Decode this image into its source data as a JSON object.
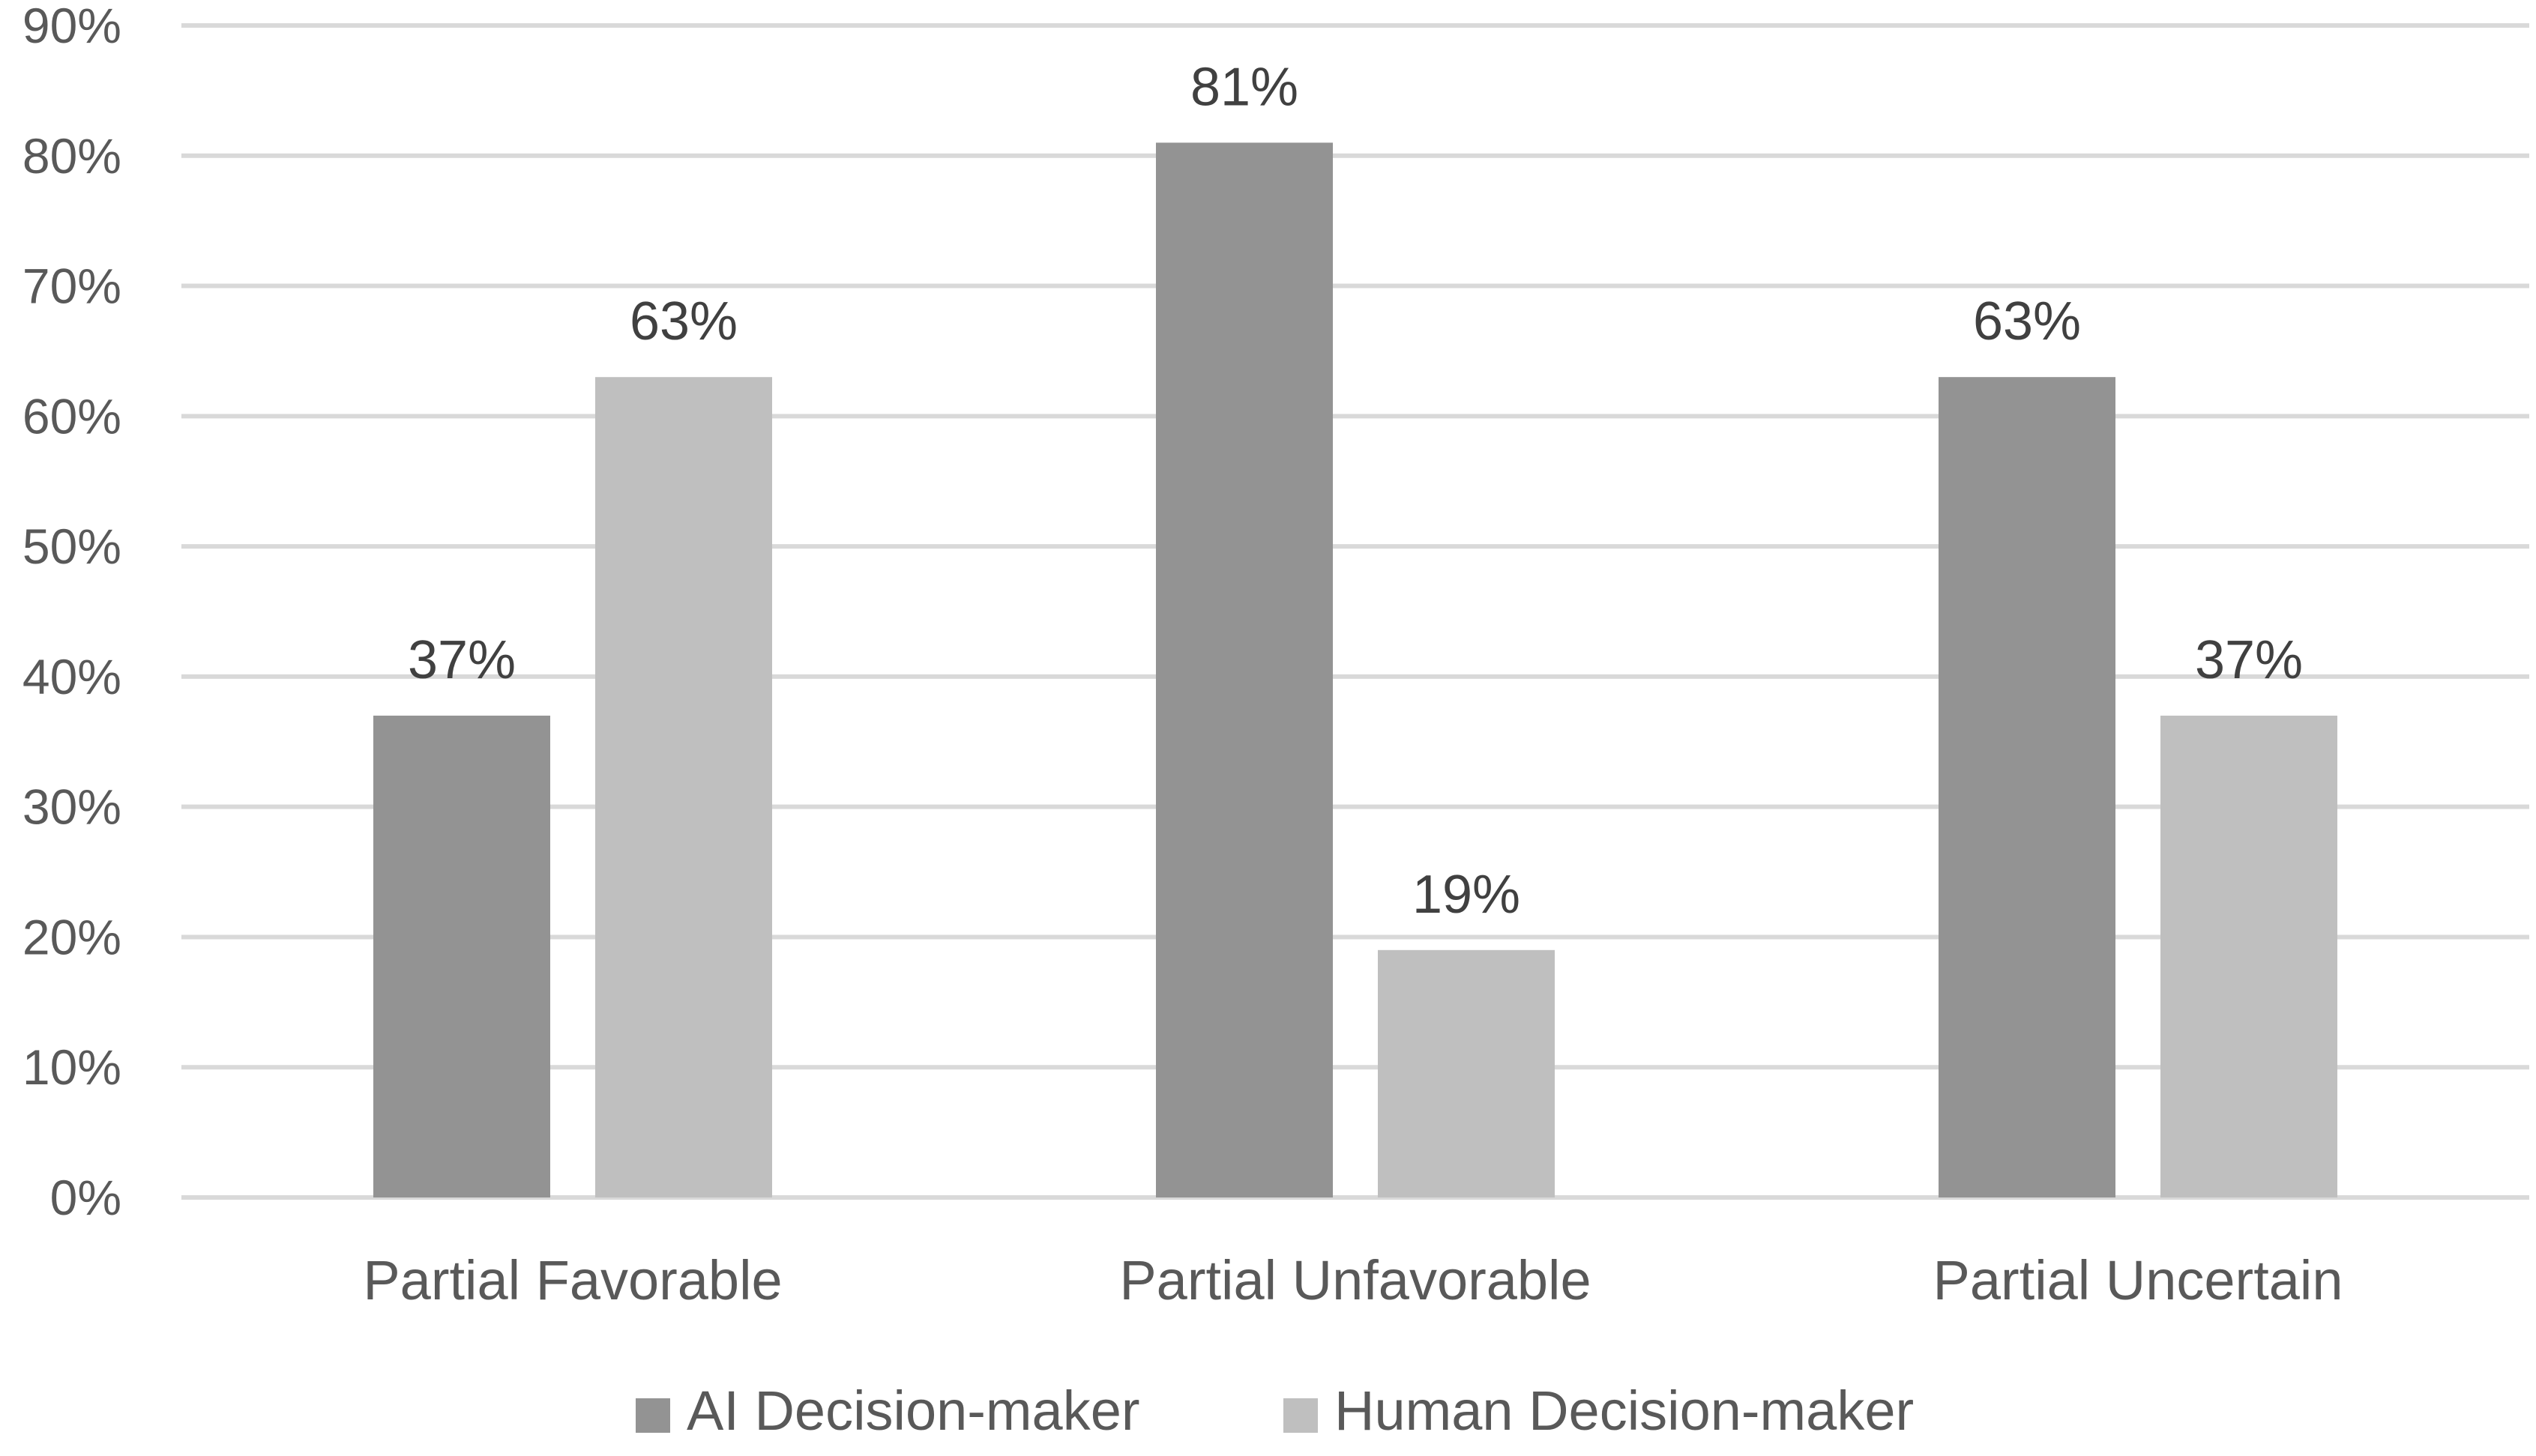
{
  "chart_data": {
    "type": "bar",
    "title": "",
    "xlabel": "",
    "ylabel": "",
    "categories": [
      "Partial Favorable",
      "Partial Unfavorable",
      "Partial Uncertain"
    ],
    "series": [
      {
        "name": "AI Decision-maker",
        "values": [
          37,
          81,
          63
        ],
        "color": "#939393"
      },
      {
        "name": "Human Decision-maker",
        "values": [
          63,
          19,
          37
        ],
        "color": "#bfbfbf"
      }
    ],
    "value_labels": [
      [
        "37%",
        "81%",
        "63%"
      ],
      [
        "63%",
        "19%",
        "37%"
      ]
    ],
    "ylim": [
      0,
      90
    ],
    "y_ticks": [
      0,
      10,
      20,
      30,
      40,
      50,
      60,
      70,
      80,
      90
    ],
    "y_tick_labels": [
      "0%",
      "10%",
      "20%",
      "30%",
      "40%",
      "50%",
      "60%",
      "70%",
      "80%",
      "90%"
    ],
    "grid": true,
    "legend_position": "bottom-center"
  }
}
